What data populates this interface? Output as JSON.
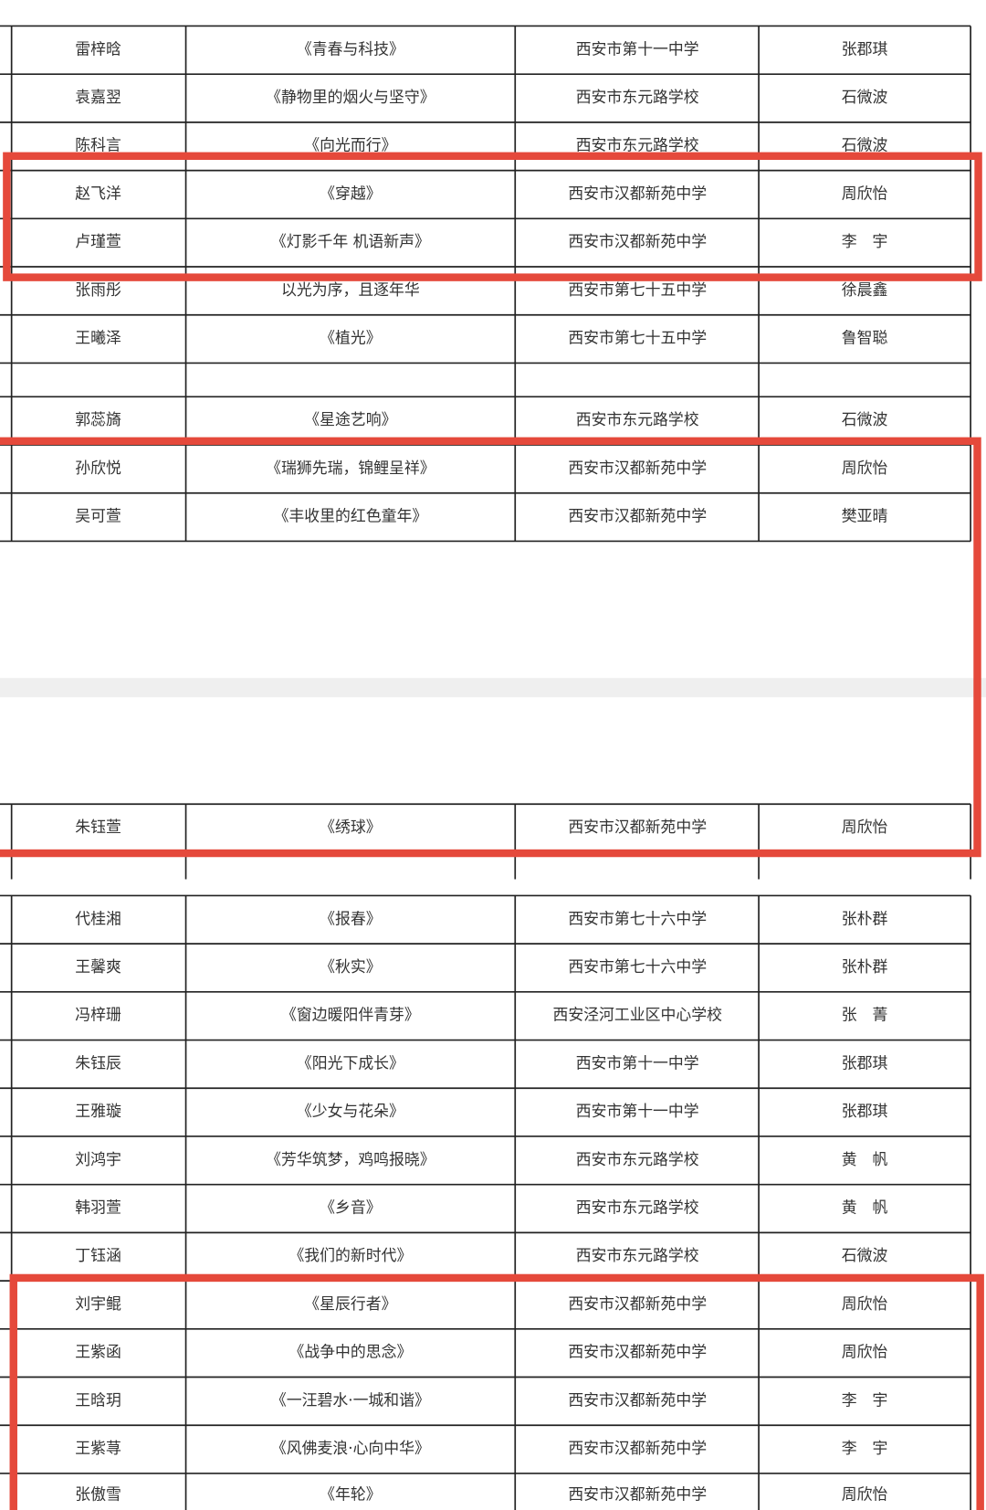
{
  "tables": [
    {
      "rows": [
        [
          "雷梓晗",
          "《青春与科技》",
          "西安市第十一中学",
          "张郡琪"
        ],
        [
          "袁嘉翌",
          "《静物里的烟火与坚守》",
          "西安市东元路学校",
          "石微波"
        ],
        [
          "陈科言",
          "《向光而行》",
          "西安市东元路学校",
          "石微波"
        ],
        [
          "赵飞洋",
          "《穿越》",
          "西安市汉都新苑中学",
          "周欣怡"
        ],
        [
          "卢瑾萱",
          "《灯影千年 机语新声》",
          "西安市汉都新苑中学",
          "李　宇"
        ],
        [
          "张雨彤",
          "以光为序，且逐年华",
          "西安市第七十五中学",
          "徐晨鑫"
        ],
        [
          "王曦泽",
          "《植光》",
          "西安市第七十五中学",
          "鲁智聪"
        ],
        [
          "郭蕊旖",
          "《星途艺响》",
          "西安市东元路学校",
          "石微波"
        ],
        [
          "孙欣悦",
          "《瑞狮先瑞，锦鲤呈祥》",
          "西安市汉都新苑中学",
          "周欣怡"
        ],
        [
          "吴可萱",
          "《丰收里的红色童年》",
          "西安市汉都新苑中学",
          "樊亚晴"
        ]
      ]
    },
    {
      "rows": [
        [
          "朱钰萱",
          "《绣球》",
          "西安市汉都新苑中学",
          "周欣怡"
        ]
      ]
    },
    {
      "rows": [
        [
          "代桂湘",
          "《报春》",
          "西安市第七十六中学",
          "张朴群"
        ],
        [
          "王馨爽",
          "《秋实》",
          "西安市第七十六中学",
          "张朴群"
        ],
        [
          "冯梓珊",
          "《窗边暖阳伴青芽》",
          "西安泾河工业区中心学校",
          "张　菁"
        ],
        [
          "朱钰辰",
          "《阳光下成长》",
          "西安市第十一中学",
          "张郡琪"
        ],
        [
          "王雅璇",
          "《少女与花朵》",
          "西安市第十一中学",
          "张郡琪"
        ],
        [
          "刘鸿宇",
          "《芳华筑梦，鸡鸣报晓》",
          "西安市东元路学校",
          "黄　帆"
        ],
        [
          "韩羽萱",
          "《乡音》",
          "西安市东元路学校",
          "黄　帆"
        ],
        [
          "丁钰涵",
          "《我们的新时代》",
          "西安市东元路学校",
          "石微波"
        ],
        [
          "刘宇鲲",
          "《星辰行者》",
          "西安市汉都新苑中学",
          "周欣怡"
        ],
        [
          "王紫函",
          "《战争中的思念》",
          "西安市汉都新苑中学",
          "周欣怡"
        ],
        [
          "王晗玥",
          "《一汪碧水·一城和谐》",
          "西安市汉都新苑中学",
          "李　宇"
        ],
        [
          "王紫荨",
          "《风佛麦浪·心向中华》",
          "西安市汉都新苑中学",
          "李　宇"
        ],
        [
          "张傲雪",
          "《年轮》",
          "西安市汉都新苑中学",
          "周欣怡"
        ]
      ]
    }
  ]
}
